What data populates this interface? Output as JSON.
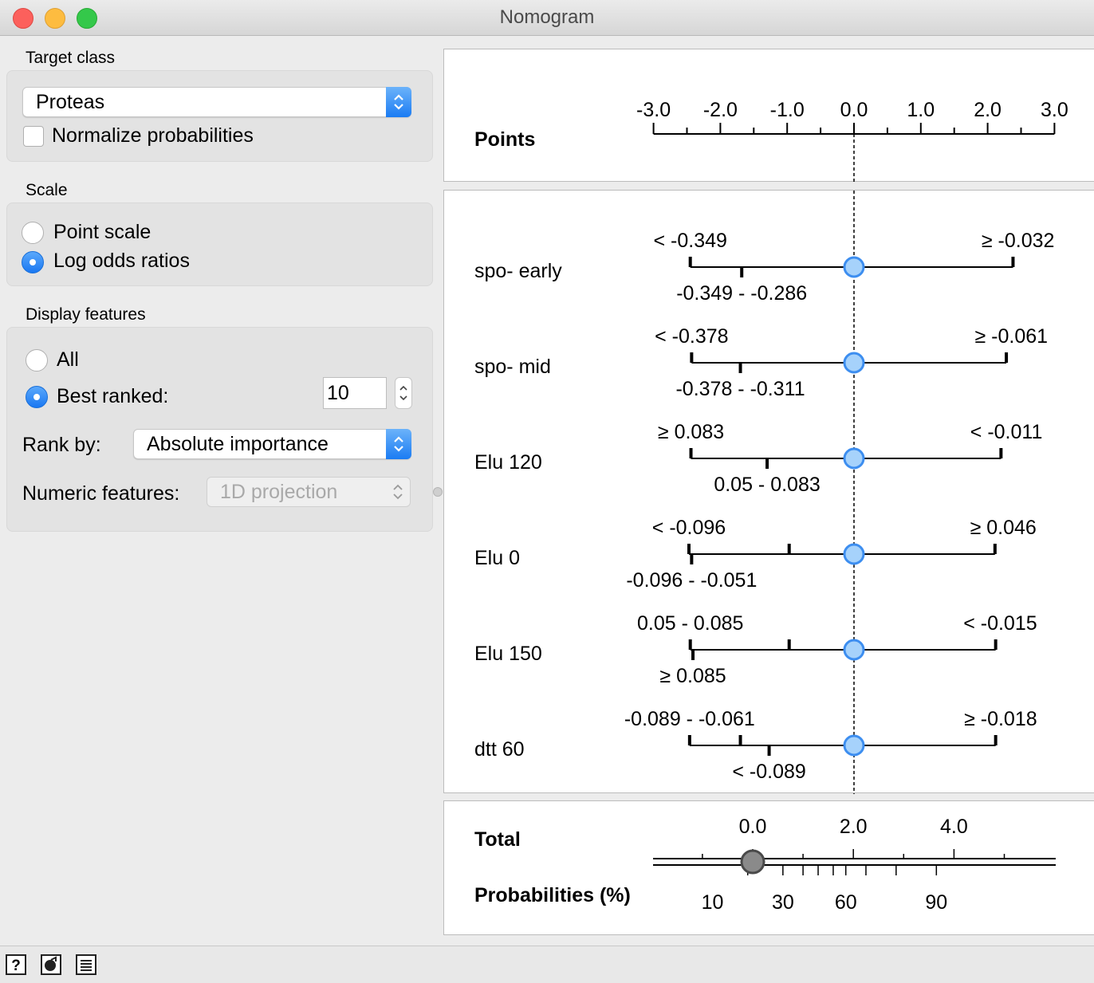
{
  "window": {
    "title": "Nomogram"
  },
  "target_class": {
    "section": "Target class",
    "selected": "Proteas",
    "normalize_label": "Normalize probabilities",
    "normalize_checked": false
  },
  "scale": {
    "section": "Scale",
    "options": [
      "Point scale",
      "Log odds ratios"
    ],
    "selected": "Log odds ratios"
  },
  "display_features": {
    "section": "Display features",
    "all_label": "All",
    "best_ranked_label": "Best ranked:",
    "selected": "Best ranked:",
    "best_ranked_value": "10",
    "rank_by_label": "Rank by:",
    "rank_by_value": "Absolute importance",
    "numeric_label": "Numeric features:",
    "numeric_value": "1D projection"
  },
  "chart_data": {
    "type": "nomogram",
    "points_axis": {
      "label": "Points",
      "ticks": [
        "-3.0",
        "-2.0",
        "-1.0",
        "0.0",
        "1.0",
        "2.0",
        "3.0"
      ],
      "range": [
        -3.0,
        3.0
      ]
    },
    "features": [
      {
        "name": "spo- early",
        "top": [
          {
            "label": "< -0.349",
            "value": -2.45
          },
          {
            "label": "≥ -0.032",
            "value": 2.38
          }
        ],
        "bottom": [
          {
            "label": "-0.349 - -0.286",
            "value": -1.68
          }
        ],
        "marker": 0.0
      },
      {
        "name": "spo- mid",
        "top": [
          {
            "label": "< -0.378",
            "value": -2.43
          },
          {
            "label": "≥ -0.061",
            "value": 2.28
          }
        ],
        "bottom": [
          {
            "label": "-0.378 - -0.311",
            "value": -1.7
          }
        ],
        "marker": 0.0
      },
      {
        "name": "Elu 120",
        "top": [
          {
            "label": "≥ 0.083",
            "value": -2.44
          },
          {
            "label": "< -0.011",
            "value": 2.2
          }
        ],
        "bottom": [
          {
            "label": "0.05 - 0.083",
            "value": -1.3
          }
        ],
        "marker": 0.0
      },
      {
        "name": "Elu 0",
        "top": [
          {
            "label": "< -0.096",
            "value": -2.47
          },
          {
            "label": "≥ 0.046",
            "value": 2.11
          }
        ],
        "bottom": [
          {
            "label": "-0.096 - -0.051",
            "value": -2.43
          }
        ],
        "extra_ticks": [
          -0.97
        ],
        "marker": 0.0
      },
      {
        "name": "Elu 150",
        "top": [
          {
            "label": "0.05 - 0.085",
            "value": -2.45
          },
          {
            "label": "< -0.015",
            "value": 2.12
          }
        ],
        "bottom": [
          {
            "label": "≥ 0.085",
            "value": -2.41
          }
        ],
        "extra_ticks": [
          -0.97
        ],
        "marker": 0.0
      },
      {
        "name": "dtt 60",
        "top": [
          {
            "label": "-0.089 - -0.061",
            "value": -2.46
          },
          {
            "label": "≥ -0.018",
            "value": 2.12
          }
        ],
        "bottom": [
          {
            "label": "< -0.089",
            "value": -1.27
          }
        ],
        "extra_ticks": [
          -1.7
        ],
        "marker": 0.0
      }
    ],
    "total": {
      "label": "Total",
      "ticks": [
        "0.0",
        "2.0",
        "4.0"
      ],
      "tick_values": [
        0,
        2,
        4
      ],
      "marker": 0.0
    },
    "probabilities": {
      "label": "Probabilities (%)",
      "ticks": [
        "10",
        "30",
        "60",
        "90"
      ],
      "tick_values": [
        -0.8,
        0.6,
        1.85,
        3.65
      ]
    }
  },
  "statusbar": {
    "icons": [
      "help-icon",
      "report-icon",
      "save-icon"
    ]
  }
}
